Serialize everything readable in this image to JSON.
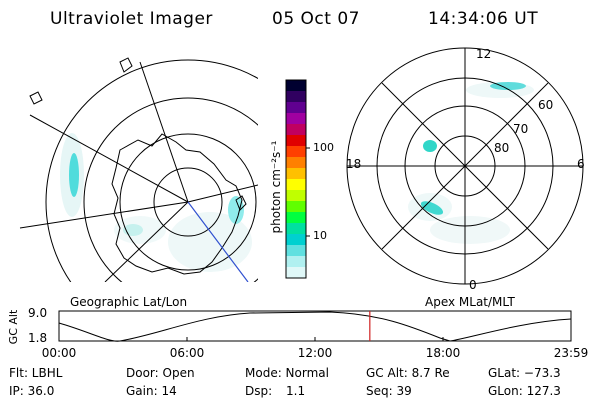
{
  "header": {
    "title": "Ultraviolet Imager",
    "date": "05 Oct 07",
    "time": "14:34:06 UT"
  },
  "left_map": {
    "label": "Geographic Lat/Lon"
  },
  "right_map": {
    "label": "Apex MLat/MLT",
    "mlt_labels": {
      "top": "12",
      "left": "18",
      "right": "6",
      "bottom": "0"
    },
    "lat_labels": [
      "60",
      "70",
      "80"
    ]
  },
  "colorbar": {
    "unit_label": "photon cm⁻²s⁻¹",
    "tick_labels": [
      "100",
      "10"
    ],
    "colors": [
      "#000030",
      "#300060",
      "#600090",
      "#a000a0",
      "#c00060",
      "#e00000",
      "#ff4000",
      "#ff8000",
      "#ffc000",
      "#ffff00",
      "#c0ff00",
      "#60ff00",
      "#00ff40",
      "#00e0a0",
      "#00d0d0",
      "#60e0e0",
      "#b0f0f0",
      "#e0f8f8"
    ]
  },
  "altitude_plot": {
    "ylabel": "GC Alt",
    "y_ticks": [
      "9.0",
      "1.8"
    ],
    "x_ticks": [
      "00:00",
      "06:00",
      "12:00",
      "18:00",
      "23:59"
    ],
    "marker_hour": 14.57
  },
  "status": {
    "row1": {
      "filter": "Flt: LBHL",
      "door": "Door: Open",
      "mode": "Mode: Normal",
      "gc_alt": "GC Alt: 8.7 Re",
      "glat": "GLat: −73.3"
    },
    "row2": {
      "ip": "IP: 36.0",
      "gain": "Gain: 14",
      "dsp_label": "Dsp:",
      "dsp_value": "1.1",
      "seq": "Seq: 39",
      "glon": "GLon: 127.3"
    }
  }
}
